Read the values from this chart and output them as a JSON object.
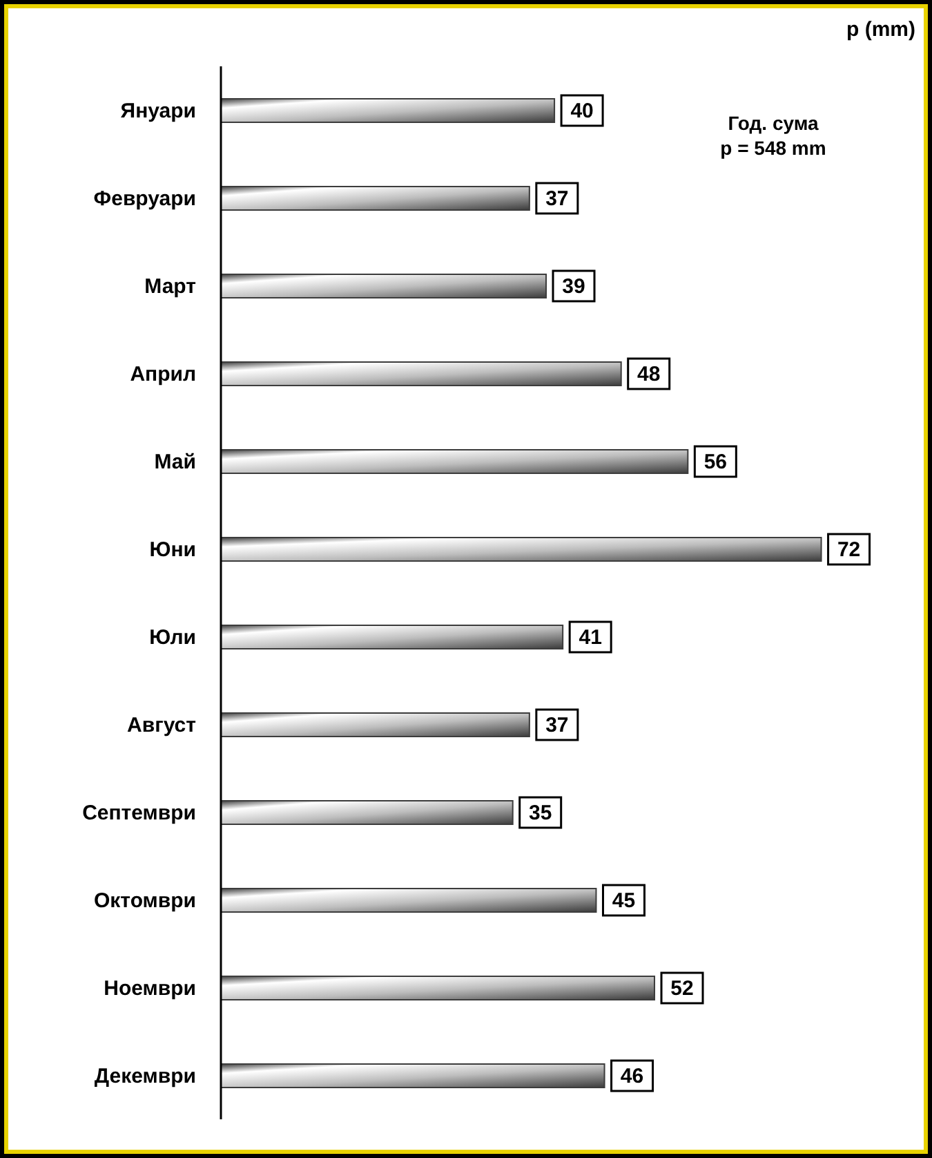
{
  "chart_data": {
    "type": "bar",
    "orientation": "horizontal",
    "xlabel": "p (mm)",
    "annotations": [
      "Год. сума",
      "p = 548 mm"
    ],
    "categories": [
      "Януари",
      "Февруари",
      "Март",
      "Април",
      "Май",
      "Юни",
      "Юли",
      "Август",
      "Септември",
      "Октомври",
      "Ноември",
      "Декември"
    ],
    "values": [
      40,
      37,
      39,
      48,
      56,
      72,
      41,
      37,
      35,
      45,
      52,
      46
    ],
    "color": "#3c3c3c",
    "data_labels": true
  }
}
